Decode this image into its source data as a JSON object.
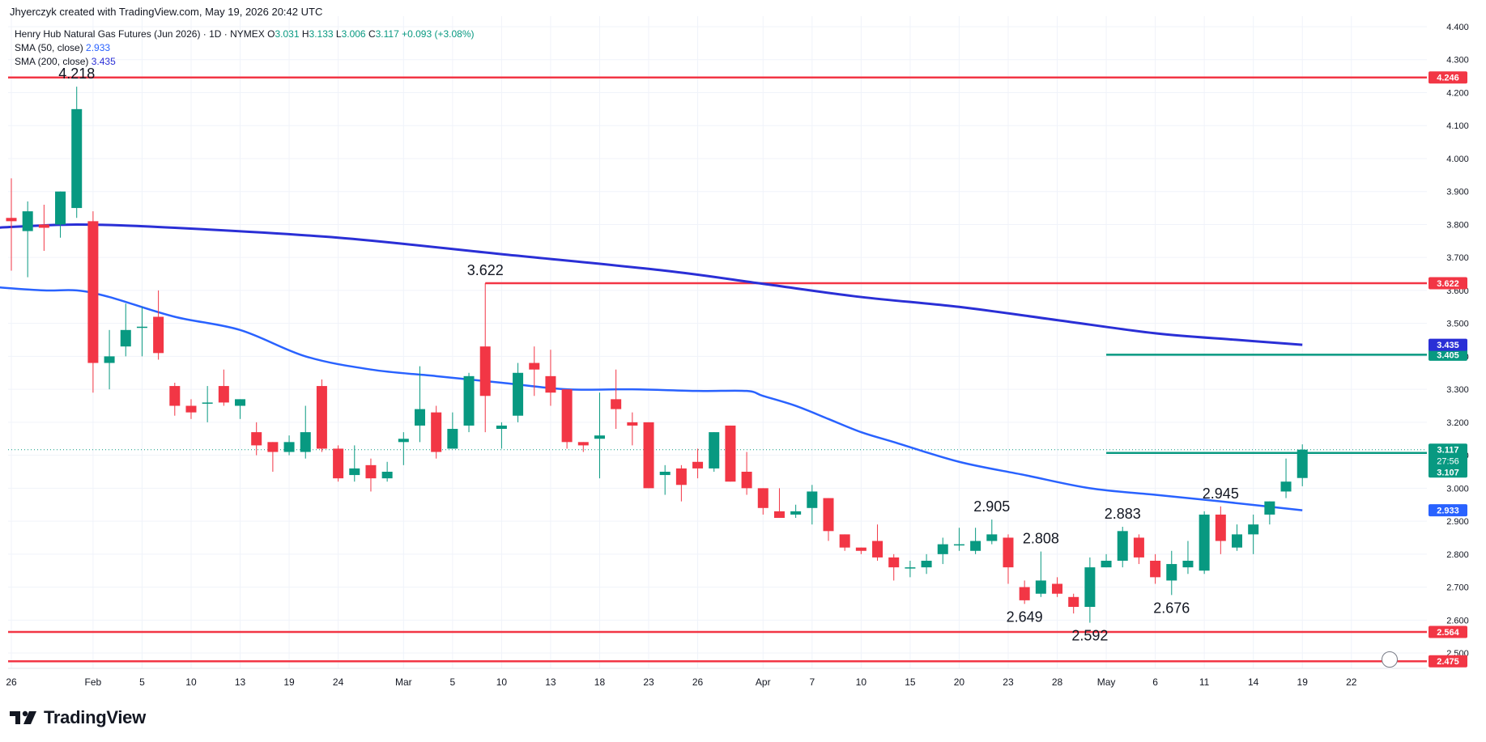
{
  "caption": "Jhyerczyk created with TradingView.com, May 19, 2026 20:42 UTC",
  "legend": {
    "symbol": "Henry Hub Natural Gas Futures (Jun 2026) · 1D · NYMEX",
    "o_label": "O",
    "o": "3.031",
    "h_label": "H",
    "h": "3.133",
    "l_label": "L",
    "l": "3.006",
    "c_label": "C",
    "c": "3.117",
    "change": "+0.093 (+3.08%)",
    "sma50_label": "SMA (50, close)",
    "sma50_value": "2.933",
    "sma200_label": "SMA (200, close)",
    "sma200_value": "3.435"
  },
  "brand": {
    "name": "TradingView"
  },
  "colors": {
    "up": "#089981",
    "down": "#f23645",
    "sma50": "#2962ff",
    "sma200": "#2a2fd6",
    "level_red": "#f23645",
    "level_green": "#089981"
  },
  "chart_data": {
    "type": "candlestick",
    "y_axis": {
      "min": 2.44,
      "max": 4.44,
      "ticks": [
        "2.500",
        "2.600",
        "2.700",
        "2.800",
        "2.900",
        "3.000",
        "3.100",
        "3.200",
        "3.300",
        "3.400",
        "3.500",
        "3.600",
        "3.700",
        "3.800",
        "3.900",
        "4.000",
        "4.100",
        "4.200",
        "4.300",
        "4.400"
      ]
    },
    "x_ticks": [
      {
        "label": "26",
        "i": 0
      },
      {
        "label": "Feb",
        "i": 5
      },
      {
        "label": "5",
        "i": 8
      },
      {
        "label": "10",
        "i": 11
      },
      {
        "label": "13",
        "i": 14
      },
      {
        "label": "19",
        "i": 17
      },
      {
        "label": "24",
        "i": 20
      },
      {
        "label": "Mar",
        "i": 24
      },
      {
        "label": "5",
        "i": 27
      },
      {
        "label": "10",
        "i": 30
      },
      {
        "label": "13",
        "i": 33
      },
      {
        "label": "18",
        "i": 36
      },
      {
        "label": "23",
        "i": 39
      },
      {
        "label": "26",
        "i": 42
      },
      {
        "label": "Apr",
        "i": 46
      },
      {
        "label": "7",
        "i": 49
      },
      {
        "label": "10",
        "i": 52
      },
      {
        "label": "15",
        "i": 55
      },
      {
        "label": "20",
        "i": 58
      },
      {
        "label": "23",
        "i": 61
      },
      {
        "label": "28",
        "i": 64
      },
      {
        "label": "May",
        "i": 67
      },
      {
        "label": "6",
        "i": 70
      },
      {
        "label": "11",
        "i": 73
      },
      {
        "label": "14",
        "i": 76
      },
      {
        "label": "19",
        "i": 79
      },
      {
        "label": "22",
        "i": 82
      }
    ],
    "candles": [
      {
        "o": 3.82,
        "h": 3.94,
        "l": 3.66,
        "c": 3.81
      },
      {
        "o": 3.78,
        "h": 3.87,
        "l": 3.64,
        "c": 3.84
      },
      {
        "o": 3.8,
        "h": 3.86,
        "l": 3.72,
        "c": 3.79
      },
      {
        "o": 3.8,
        "h": 3.9,
        "l": 3.76,
        "c": 3.9
      },
      {
        "o": 3.85,
        "h": 4.218,
        "l": 3.82,
        "c": 4.15
      },
      {
        "o": 3.81,
        "h": 3.84,
        "l": 3.29,
        "c": 3.38
      },
      {
        "o": 3.38,
        "h": 3.48,
        "l": 3.3,
        "c": 3.4
      },
      {
        "o": 3.43,
        "h": 3.56,
        "l": 3.4,
        "c": 3.48
      },
      {
        "o": 3.49,
        "h": 3.55,
        "l": 3.4,
        "c": 3.49
      },
      {
        "o": 3.52,
        "h": 3.6,
        "l": 3.39,
        "c": 3.41
      },
      {
        "o": 3.31,
        "h": 3.32,
        "l": 3.22,
        "c": 3.25
      },
      {
        "o": 3.25,
        "h": 3.27,
        "l": 3.21,
        "c": 3.23
      },
      {
        "o": 3.26,
        "h": 3.31,
        "l": 3.2,
        "c": 3.26
      },
      {
        "o": 3.31,
        "h": 3.36,
        "l": 3.25,
        "c": 3.26
      },
      {
        "o": 3.25,
        "h": 3.27,
        "l": 3.21,
        "c": 3.27
      },
      {
        "o": 3.17,
        "h": 3.2,
        "l": 3.1,
        "c": 3.13
      },
      {
        "o": 3.14,
        "h": 3.14,
        "l": 3.05,
        "c": 3.11
      },
      {
        "o": 3.11,
        "h": 3.16,
        "l": 3.1,
        "c": 3.14
      },
      {
        "o": 3.11,
        "h": 3.25,
        "l": 3.09,
        "c": 3.17
      },
      {
        "o": 3.31,
        "h": 3.33,
        "l": 3.11,
        "c": 3.12
      },
      {
        "o": 3.12,
        "h": 3.13,
        "l": 3.02,
        "c": 3.03
      },
      {
        "o": 3.04,
        "h": 3.13,
        "l": 3.02,
        "c": 3.06
      },
      {
        "o": 3.07,
        "h": 3.09,
        "l": 2.99,
        "c": 3.03
      },
      {
        "o": 3.03,
        "h": 3.08,
        "l": 3.02,
        "c": 3.05
      },
      {
        "o": 3.14,
        "h": 3.17,
        "l": 3.07,
        "c": 3.15
      },
      {
        "o": 3.19,
        "h": 3.37,
        "l": 3.14,
        "c": 3.24
      },
      {
        "o": 3.23,
        "h": 3.25,
        "l": 3.09,
        "c": 3.11
      },
      {
        "o": 3.12,
        "h": 3.23,
        "l": 3.12,
        "c": 3.18
      },
      {
        "o": 3.19,
        "h": 3.35,
        "l": 3.17,
        "c": 3.34
      },
      {
        "o": 3.43,
        "h": 3.622,
        "l": 3.17,
        "c": 3.28
      },
      {
        "o": 3.18,
        "h": 3.2,
        "l": 3.12,
        "c": 3.19
      },
      {
        "o": 3.22,
        "h": 3.38,
        "l": 3.2,
        "c": 3.35
      },
      {
        "o": 3.38,
        "h": 3.43,
        "l": 3.28,
        "c": 3.36
      },
      {
        "o": 3.34,
        "h": 3.42,
        "l": 3.25,
        "c": 3.29
      },
      {
        "o": 3.3,
        "h": 3.3,
        "l": 3.12,
        "c": 3.14
      },
      {
        "o": 3.14,
        "h": 3.14,
        "l": 3.11,
        "c": 3.13
      },
      {
        "o": 3.15,
        "h": 3.29,
        "l": 3.03,
        "c": 3.16
      },
      {
        "o": 3.27,
        "h": 3.36,
        "l": 3.18,
        "c": 3.24
      },
      {
        "o": 3.2,
        "h": 3.23,
        "l": 3.13,
        "c": 3.19
      },
      {
        "o": 3.2,
        "h": 3.2,
        "l": 3.0,
        "c": 3.0
      },
      {
        "o": 3.04,
        "h": 3.07,
        "l": 2.98,
        "c": 3.05
      },
      {
        "o": 3.06,
        "h": 3.07,
        "l": 2.96,
        "c": 3.01
      },
      {
        "o": 3.08,
        "h": 3.12,
        "l": 3.03,
        "c": 3.06
      },
      {
        "o": 3.06,
        "h": 3.17,
        "l": 3.05,
        "c": 3.17
      },
      {
        "o": 3.19,
        "h": 3.19,
        "l": 3.02,
        "c": 3.02
      },
      {
        "o": 3.05,
        "h": 3.11,
        "l": 2.98,
        "c": 3.0
      },
      {
        "o": 3.0,
        "h": 3.0,
        "l": 2.92,
        "c": 2.94
      },
      {
        "o": 2.93,
        "h": 3.0,
        "l": 2.91,
        "c": 2.91
      },
      {
        "o": 2.92,
        "h": 2.95,
        "l": 2.91,
        "c": 2.93
      },
      {
        "o": 2.94,
        "h": 3.01,
        "l": 2.89,
        "c": 2.99
      },
      {
        "o": 2.97,
        "h": 2.97,
        "l": 2.84,
        "c": 2.87
      },
      {
        "o": 2.86,
        "h": 2.86,
        "l": 2.81,
        "c": 2.82
      },
      {
        "o": 2.82,
        "h": 2.82,
        "l": 2.8,
        "c": 2.81
      },
      {
        "o": 2.84,
        "h": 2.89,
        "l": 2.78,
        "c": 2.79
      },
      {
        "o": 2.79,
        "h": 2.8,
        "l": 2.72,
        "c": 2.76
      },
      {
        "o": 2.76,
        "h": 2.78,
        "l": 2.73,
        "c": 2.76
      },
      {
        "o": 2.76,
        "h": 2.8,
        "l": 2.74,
        "c": 2.78
      },
      {
        "o": 2.8,
        "h": 2.85,
        "l": 2.77,
        "c": 2.83
      },
      {
        "o": 2.83,
        "h": 2.88,
        "l": 2.81,
        "c": 2.83
      },
      {
        "o": 2.81,
        "h": 2.88,
        "l": 2.8,
        "c": 2.84
      },
      {
        "o": 2.84,
        "h": 2.905,
        "l": 2.83,
        "c": 2.86
      },
      {
        "o": 2.85,
        "h": 2.86,
        "l": 2.71,
        "c": 2.76
      },
      {
        "o": 2.7,
        "h": 2.72,
        "l": 2.649,
        "c": 2.66
      },
      {
        "o": 2.68,
        "h": 2.808,
        "l": 2.67,
        "c": 2.72
      },
      {
        "o": 2.71,
        "h": 2.73,
        "l": 2.67,
        "c": 2.68
      },
      {
        "o": 2.67,
        "h": 2.68,
        "l": 2.62,
        "c": 2.64
      },
      {
        "o": 2.64,
        "h": 2.79,
        "l": 2.592,
        "c": 2.76
      },
      {
        "o": 2.76,
        "h": 2.8,
        "l": 2.76,
        "c": 2.78
      },
      {
        "o": 2.78,
        "h": 2.883,
        "l": 2.76,
        "c": 2.87
      },
      {
        "o": 2.85,
        "h": 2.86,
        "l": 2.77,
        "c": 2.79
      },
      {
        "o": 2.78,
        "h": 2.8,
        "l": 2.71,
        "c": 2.73
      },
      {
        "o": 2.72,
        "h": 2.81,
        "l": 2.676,
        "c": 2.77
      },
      {
        "o": 2.76,
        "h": 2.84,
        "l": 2.74,
        "c": 2.78
      },
      {
        "o": 2.75,
        "h": 2.93,
        "l": 2.74,
        "c": 2.92
      },
      {
        "o": 2.92,
        "h": 2.945,
        "l": 2.8,
        "c": 2.84
      },
      {
        "o": 2.82,
        "h": 2.89,
        "l": 2.81,
        "c": 2.86
      },
      {
        "o": 2.86,
        "h": 2.92,
        "l": 2.8,
        "c": 2.89
      },
      {
        "o": 2.92,
        "h": 2.96,
        "l": 2.89,
        "c": 2.96
      },
      {
        "o": 2.99,
        "h": 3.09,
        "l": 2.97,
        "c": 3.02
      },
      {
        "o": 3.031,
        "h": 3.133,
        "l": 3.006,
        "c": 3.117
      }
    ],
    "sma50": [
      {
        "i": -1,
        "v": 3.61
      },
      {
        "i": 2,
        "v": 3.6
      },
      {
        "i": 4,
        "v": 3.6
      },
      {
        "i": 6,
        "v": 3.58
      },
      {
        "i": 10,
        "v": 3.52
      },
      {
        "i": 14,
        "v": 3.48
      },
      {
        "i": 18,
        "v": 3.4
      },
      {
        "i": 22,
        "v": 3.36
      },
      {
        "i": 26,
        "v": 3.34
      },
      {
        "i": 30,
        "v": 3.32
      },
      {
        "i": 34,
        "v": 3.3
      },
      {
        "i": 38,
        "v": 3.3
      },
      {
        "i": 42,
        "v": 3.295
      },
      {
        "i": 45,
        "v": 3.295
      },
      {
        "i": 46,
        "v": 3.28
      },
      {
        "i": 48,
        "v": 3.25
      },
      {
        "i": 50,
        "v": 3.21
      },
      {
        "i": 52,
        "v": 3.17
      },
      {
        "i": 54,
        "v": 3.14
      },
      {
        "i": 58,
        "v": 3.08
      },
      {
        "i": 62,
        "v": 3.04
      },
      {
        "i": 66,
        "v": 3.0
      },
      {
        "i": 70,
        "v": 2.98
      },
      {
        "i": 74,
        "v": 2.96
      },
      {
        "i": 79,
        "v": 2.933
      }
    ],
    "sma200": [
      {
        "i": -1,
        "v": 3.79
      },
      {
        "i": 4,
        "v": 3.8
      },
      {
        "i": 10,
        "v": 3.79
      },
      {
        "i": 20,
        "v": 3.76
      },
      {
        "i": 30,
        "v": 3.71
      },
      {
        "i": 40,
        "v": 3.66
      },
      {
        "i": 46,
        "v": 3.62
      },
      {
        "i": 52,
        "v": 3.58
      },
      {
        "i": 58,
        "v": 3.55
      },
      {
        "i": 64,
        "v": 3.51
      },
      {
        "i": 70,
        "v": 3.47
      },
      {
        "i": 75,
        "v": 3.45
      },
      {
        "i": 79,
        "v": 3.435
      }
    ],
    "levels": [
      {
        "value": 4.246,
        "color": "red",
        "from": -1.5,
        "label": "4.246"
      },
      {
        "value": 3.622,
        "color": "red",
        "from": 29,
        "label": "3.622"
      },
      {
        "value": 3.405,
        "color": "green",
        "from": 67,
        "label": "3.405"
      },
      {
        "value": 3.107,
        "color": "green",
        "from": 67,
        "label": "3.107"
      },
      {
        "value": 2.564,
        "color": "red",
        "from": -1.5,
        "label": "2.564"
      },
      {
        "value": 2.475,
        "color": "red",
        "from": -1.5,
        "label": "2.475"
      }
    ],
    "price_badges": [
      {
        "value": 3.435,
        "label": "3.435",
        "bg": "#2a2fd6"
      },
      {
        "value": 2.933,
        "label": "2.933",
        "bg": "#2962ff"
      }
    ],
    "last_price": {
      "value": 3.117,
      "label": "3.117",
      "countdown": "27:56"
    },
    "annotations": [
      {
        "label": "4.218",
        "i": 4,
        "value": 4.218,
        "pos": "above"
      },
      {
        "label": "3.622",
        "i": 29,
        "value": 3.622,
        "pos": "above"
      },
      {
        "label": "2.905",
        "i": 60,
        "value": 2.905,
        "pos": "above"
      },
      {
        "label": "2.808",
        "i": 63,
        "value": 2.808,
        "pos": "above"
      },
      {
        "label": "2.883",
        "i": 68,
        "value": 2.883,
        "pos": "above"
      },
      {
        "label": "2.945",
        "i": 74,
        "value": 2.945,
        "pos": "above"
      },
      {
        "label": "2.649",
        "i": 62,
        "value": 2.649,
        "pos": "below"
      },
      {
        "label": "2.592",
        "i": 66,
        "value": 2.592,
        "pos": "below"
      },
      {
        "label": "2.676",
        "i": 71,
        "value": 2.676,
        "pos": "below"
      }
    ]
  }
}
